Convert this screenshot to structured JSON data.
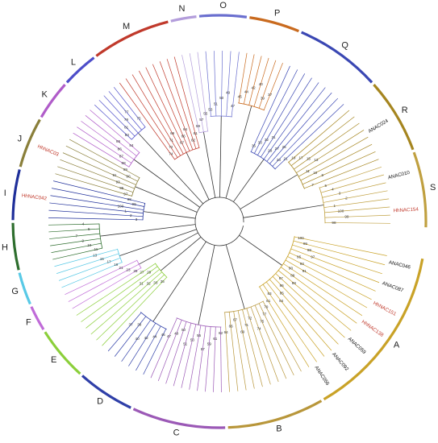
{
  "figure": {
    "clades": [
      {
        "letter": "A",
        "color": "#c9a227"
      },
      {
        "letter": "B",
        "color": "#b8963a"
      },
      {
        "letter": "C",
        "color": "#9b59b6"
      },
      {
        "letter": "D",
        "color": "#2f3fa8"
      },
      {
        "letter": "E",
        "color": "#8bcf3a"
      },
      {
        "letter": "F",
        "color": "#c06bd8"
      },
      {
        "letter": "G",
        "color": "#58c9e6"
      },
      {
        "letter": "H",
        "color": "#2e6e2e"
      },
      {
        "letter": "I",
        "color": "#1f2f9a"
      },
      {
        "letter": "J",
        "color": "#8a7f3a"
      },
      {
        "letter": "K",
        "color": "#b05cc9"
      },
      {
        "letter": "L",
        "color": "#4d4dc9"
      },
      {
        "letter": "M",
        "color": "#c0392b"
      },
      {
        "letter": "N",
        "color": "#b39ddb"
      },
      {
        "letter": "O",
        "color": "#6a6fcf"
      },
      {
        "letter": "P",
        "color": "#c96a1e"
      },
      {
        "letter": "Q",
        "color": "#3a47b3"
      },
      {
        "letter": "R",
        "color": "#a5851f"
      },
      {
        "letter": "S",
        "color": "#c0a040"
      }
    ],
    "legible_leaves": [
      {
        "clade": "A",
        "name": "ANAC046",
        "color": "#111111"
      },
      {
        "clade": "A",
        "name": "ANAC087",
        "color": "#111111"
      },
      {
        "clade": "A",
        "name": "HhNAC151",
        "color": "#c0392b"
      },
      {
        "clade": "A",
        "name": "HhNAC138",
        "color": "#c0392b"
      },
      {
        "clade": "A",
        "name": "ANAC059",
        "color": "#111111"
      },
      {
        "clade": "A",
        "name": "ANAC092",
        "color": "#111111"
      },
      {
        "clade": "A",
        "name": "ANAC056",
        "color": "#111111"
      },
      {
        "clade": "I",
        "name": "HhNAC042",
        "color": "#c0392b"
      },
      {
        "clade": "J",
        "name": "HhNAC03",
        "color": "#c0392b"
      },
      {
        "clade": "R",
        "name": "ANAC024",
        "color": "#111111"
      },
      {
        "clade": "S",
        "name": "ANAC010",
        "color": "#111111"
      },
      {
        "clade": "S",
        "name": "HhNAC154",
        "color": "#c0392b"
      }
    ],
    "support_values": [
      "100",
      "99",
      "98",
      "97",
      "95",
      "93",
      "91",
      "90",
      "89",
      "88",
      "87",
      "86",
      "85",
      "84",
      "83",
      "81",
      "79",
      "77",
      "75",
      "74",
      "72",
      "71",
      "69",
      "67",
      "66",
      "64",
      "62",
      "61",
      "59",
      "57",
      "55",
      "53",
      "51",
      "50",
      "49",
      "47",
      "45",
      "44",
      "42",
      "40",
      "39",
      "37",
      "35",
      "33",
      "32",
      "31",
      "29",
      "27",
      "25",
      "23",
      "21",
      "19",
      "17",
      "15",
      "13",
      "11",
      "10",
      "9",
      "7",
      "5",
      "4",
      "3",
      "2",
      "1"
    ]
  }
}
